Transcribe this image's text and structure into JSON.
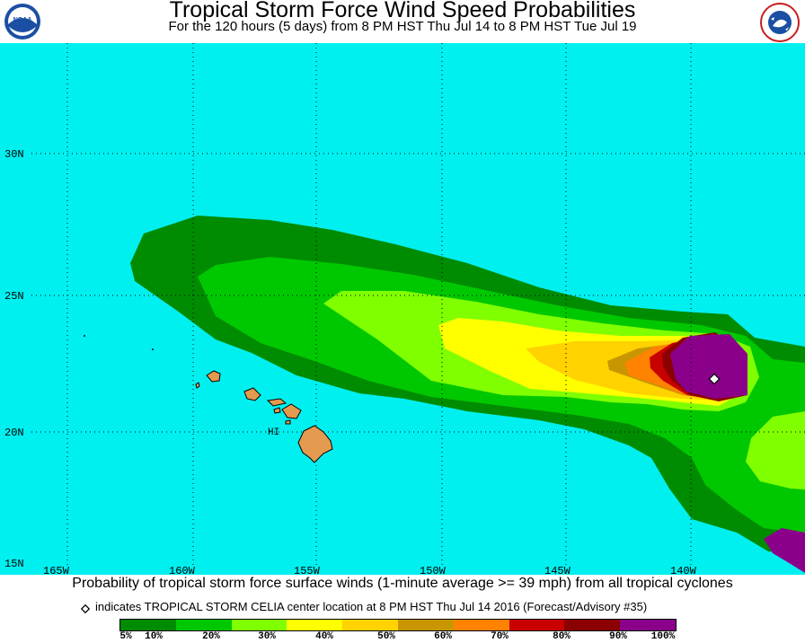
{
  "header": {
    "title": "Tropical Storm Force Wind Speed Probabilities",
    "subtitle": "For the 120 hours (5 days) from 8 PM HST Thu Jul 14 to 8 PM HST Tue Jul 19",
    "left_logo_text": "NOAA",
    "right_logo_text": "NATIONAL WEATHER SERVICE"
  },
  "map": {
    "background_color": "#00f0f0",
    "land_color": "#e49b4f",
    "lat_labels": [
      "30N",
      "25N",
      "20N",
      "15N"
    ],
    "lon_labels": [
      "165W",
      "160W",
      "155W",
      "150W",
      "145W",
      "140W"
    ],
    "island_label": "HI",
    "storm_marker_icon": "diamond-icon"
  },
  "caption": "Probability of tropical storm force surface winds (1-minute average >= 39 mph) from all tropical cyclones",
  "storm_note": "indicates TROPICAL STORM CELIA center location at 8 PM HST Thu Jul 14 2016 (Forecast/Advisory #35)",
  "legend": {
    "colors": [
      "#008c00",
      "#00c800",
      "#80ff00",
      "#ffff00",
      "#ffd200",
      "#c89600",
      "#ff8200",
      "#c80000",
      "#8b0000",
      "#8b008b"
    ],
    "labels": [
      "5%",
      "10%",
      "20%",
      "30%",
      "40%",
      "50%",
      "60%",
      "70%",
      "80%",
      "90%",
      "100%"
    ]
  }
}
